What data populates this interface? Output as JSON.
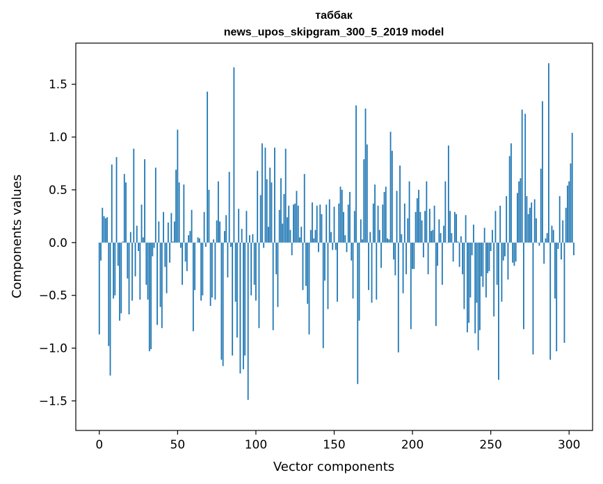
{
  "chart_data": {
    "type": "bar",
    "title": "таббак",
    "subtitle": "news_upos_skipgram_300_5_2019 model",
    "xlabel": "Vector components",
    "ylabel": "Components values",
    "xlim": [
      -15,
      315
    ],
    "ylim": [
      -1.78,
      1.89
    ],
    "xticks": [
      0,
      50,
      100,
      150,
      200,
      250,
      300
    ],
    "yticks": [
      -1.5,
      -1.0,
      -0.5,
      0.0,
      0.5,
      1.0,
      1.5
    ],
    "ytick_labels": [
      "−1.5",
      "−1.0",
      "−0.5",
      "0.0",
      "0.5",
      "1.0",
      "1.5"
    ],
    "grid": false,
    "bar_color": "#1f77b4",
    "values": [
      -0.87,
      -0.17,
      0.33,
      0.25,
      0.23,
      0.24,
      -0.98,
      -1.26,
      0.74,
      -0.53,
      -0.5,
      0.81,
      -0.22,
      -0.74,
      -0.67,
      0.01,
      0.65,
      0.57,
      -0.34,
      -0.68,
      0.1,
      -0.55,
      0.89,
      -0.32,
      0.16,
      -0.08,
      -0.54,
      0.36,
      0.05,
      0.79,
      -0.4,
      -0.54,
      -1.03,
      -1.01,
      -0.13,
      -0.05,
      0.71,
      -0.78,
      0.2,
      -0.61,
      -0.81,
      0.29,
      -0.23,
      -0.48,
      0.19,
      -0.19,
      0.28,
      0.01,
      0.2,
      0.69,
      1.07,
      0.57,
      -0.05,
      -0.4,
      0.55,
      -0.18,
      -0.27,
      0.07,
      0.11,
      0.31,
      -0.84,
      -0.45,
      0.0,
      0.05,
      0.04,
      -0.55,
      -0.5,
      0.29,
      -0.04,
      1.43,
      0.5,
      -0.6,
      -0.52,
      0.03,
      -0.54,
      0.21,
      0.58,
      0.2,
      -1.11,
      -1.17,
      0.11,
      0.26,
      -0.33,
      0.67,
      -0.04,
      -1.07,
      1.66,
      -0.56,
      -0.9,
      0.32,
      -1.24,
      0.13,
      -1.2,
      -1.07,
      0.3,
      -1.49,
      0.07,
      -0.5,
      0.08,
      -0.4,
      -0.55,
      0.68,
      -0.81,
      0.45,
      0.94,
      -0.05,
      0.9,
      0.6,
      0.15,
      0.71,
      0.57,
      -0.83,
      0.9,
      -0.3,
      -0.61,
      0.31,
      0.61,
      0.18,
      0.46,
      0.89,
      0.24,
      0.35,
      0.12,
      -0.12,
      0.36,
      0.37,
      0.49,
      0.35,
      0.05,
      0.15,
      -0.45,
      0.65,
      -0.41,
      -0.58,
      -0.87,
      0.12,
      0.38,
      0.04,
      0.12,
      0.35,
      -0.09,
      0.36,
      0.27,
      -1.0,
      -0.36,
      0.36,
      -0.63,
      0.41,
      0.1,
      -0.07,
      0.34,
      -0.07,
      -0.56,
      0.37,
      0.53,
      0.5,
      0.29,
      0.07,
      -0.09,
      0.36,
      0.48,
      -0.17,
      -0.53,
      0.3,
      1.3,
      -1.34,
      -0.74,
      0.22,
      0.03,
      0.79,
      1.27,
      0.93,
      -0.45,
      0.1,
      -0.57,
      0.37,
      0.55,
      -0.54,
      0.35,
      0.12,
      -0.24,
      0.36,
      0.48,
      0.53,
      0.04,
      0.03,
      1.05,
      0.87,
      -0.16,
      -0.31,
      0.49,
      -1.04,
      0.73,
      0.08,
      -0.48,
      0.37,
      -0.3,
      0.23,
      0.58,
      -0.82,
      -0.25,
      -0.25,
      0.29,
      0.42,
      0.5,
      0.29,
      0.21,
      -0.14,
      0.3,
      0.58,
      -0.3,
      0.32,
      0.11,
      0.12,
      0.35,
      -0.79,
      -0.22,
      0.22,
      0.09,
      -0.4,
      0.16,
      0.58,
      0.0,
      0.92,
      0.3,
      0.09,
      -0.18,
      0.29,
      0.27,
      0.01,
      -0.23,
      0.06,
      -0.3,
      -0.63,
      0.26,
      -0.85,
      -0.76,
      -0.52,
      -0.12,
      0.17,
      -0.86,
      -0.57,
      -1.02,
      -0.83,
      -0.32,
      -0.42,
      0.14,
      -0.52,
      -0.29,
      -0.27,
      -0.08,
      0.12,
      -0.7,
      0.3,
      -0.4,
      -1.3,
      0.35,
      -0.56,
      -0.17,
      -0.13,
      0.44,
      -0.35,
      0.82,
      0.94,
      -0.19,
      -0.22,
      -0.18,
      0.47,
      0.58,
      0.61,
      1.26,
      -0.82,
      1.22,
      0.44,
      0.27,
      0.33,
      0.38,
      -1.06,
      0.41,
      0.23,
      0.0,
      -0.03,
      0.7,
      1.34,
      -0.2,
      0.04,
      0.09,
      1.7,
      -1.11,
      0.16,
      0.12,
      -0.53,
      -1.03,
      -0.06,
      0.44,
      -0.16,
      0.21,
      -0.95,
      0.33,
      0.54,
      0.58,
      0.75,
      1.04,
      -0.12
    ]
  }
}
